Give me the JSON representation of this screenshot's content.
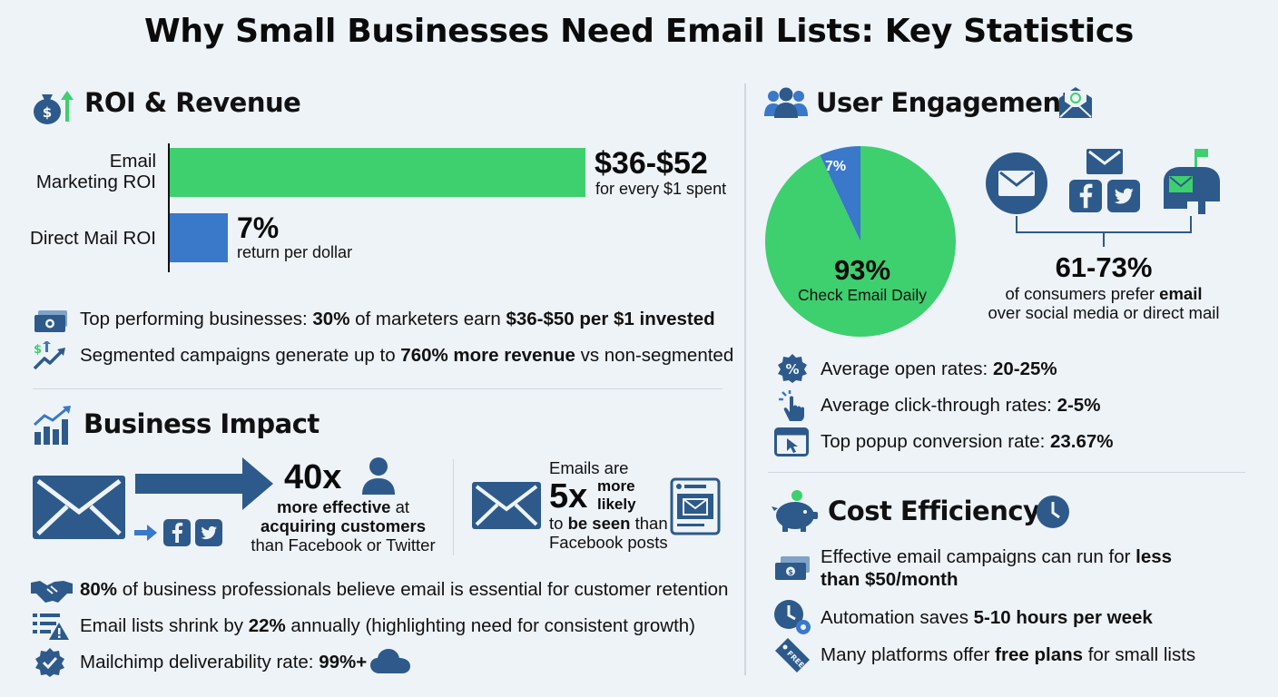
{
  "title": "Why Small Businesses Need Email Lists: Key Statistics",
  "roi": {
    "heading": "ROI & Revenue",
    "email_label_1": "Email",
    "email_label_2": "Marketing ROI",
    "email_value": "$36-$52",
    "email_sub": "for every $1 spent",
    "mail_label": "Direct Mail ROI",
    "mail_value": "7%",
    "mail_sub": "return per dollar",
    "stat1_a": "Top performing businesses: ",
    "stat1_b": "30%",
    "stat1_c": " of marketers earn ",
    "stat1_d": "$36-$50 per $1 invested",
    "stat2_a": "Segmented campaigns generate up to ",
    "stat2_b": "760% more revenue",
    "stat2_c": " vs non-segmented"
  },
  "impact": {
    "heading": "Business Impact",
    "big1": "40x",
    "line1": "more effective",
    "line1b": " at",
    "line2": "acquiring customers",
    "line3": "than Facebook or Twitter",
    "emails_are": "Emails are",
    "big2": "5x",
    "more": "more",
    "likely": "likely",
    "to_be_a": "to ",
    "to_be_b": "be seen",
    "to_be_c": " than",
    "fb_posts": "Facebook posts",
    "stat1_a": "80%",
    "stat1_b": " of business professionals believe email is essential for customer retention",
    "stat2_a": "Email lists shrink by ",
    "stat2_b": "22%",
    "stat2_c": " annually (highlighting need for consistent growth)",
    "stat3_a": "Mailchimp deliverability rate: ",
    "stat3_b": "99%+"
  },
  "engagement": {
    "heading": "User Engagement",
    "pie_big": "93%",
    "pie_label": "Check Email Daily",
    "pie_small": "7%",
    "pie_values": [
      93,
      7
    ],
    "pie_colors": [
      "#3ecf6e",
      "#3a78c9"
    ],
    "prefer_big": "61-73%",
    "prefer_1a": "of consumers prefer ",
    "prefer_1b": "email",
    "prefer_2": "over social media or direct mail",
    "stat1_a": "Average open rates: ",
    "stat1_b": "20-25%",
    "stat2_a": "Average click-through rates: ",
    "stat2_b": "2-5%",
    "stat3_a": "Top popup conversion rate: ",
    "stat3_b": "23.67%"
  },
  "cost": {
    "heading": "Cost Efficiency",
    "stat1_a": "Effective email campaigns can run for ",
    "stat1_b": "less",
    "stat1_c": "than $50/month",
    "stat2_a": "Automation saves ",
    "stat2_b": "5-10 hours per week",
    "stat3_a": "Many platforms offer ",
    "stat3_b": "free plans",
    "stat3_c": " for small lists",
    "tag_text": "FREE"
  },
  "colors": {
    "green": "#3ecf6e",
    "blue": "#3a78c9",
    "navy": "#2d5a8a"
  }
}
